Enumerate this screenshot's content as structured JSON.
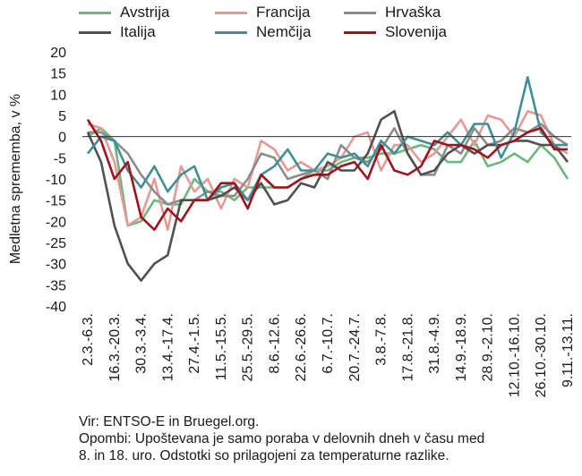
{
  "chart_data": {
    "type": "line",
    "title": "",
    "xlabel": "",
    "ylabel": "Medletna sprememba, v %",
    "ylim": [
      -40,
      20
    ],
    "yticks": [
      20,
      15,
      10,
      5,
      0,
      -5,
      -10,
      -15,
      -20,
      -25,
      -30,
      -35,
      -40
    ],
    "grid": false,
    "legend_position": "top",
    "x_tick_labels": [
      "2.3.-6.3.",
      "16.3.-20.3.",
      "30.3.-3.4.",
      "13.4.-17.4.",
      "27.4.-1.5.",
      "11.5.-15.5.",
      "25.5.-29.5.",
      "8.6.-12.6.",
      "22.6.-26.6.",
      "6.7.-10.7.",
      "20.7.-24.7.",
      "3.8.-7.8.",
      "17.8.-21.8.",
      "31.8.-4.9.",
      "14.9.-18.9.",
      "28.9.-2.10.",
      "12.10.-16.10.",
      "26.10.-30.10.",
      "9.11.-13.11."
    ],
    "n_points": 37,
    "series": [
      {
        "name": "Avstrija",
        "color": "#6db77c",
        "values": [
          0,
          2,
          -1,
          -21,
          -20,
          -15,
          -16,
          -16,
          -10,
          -13,
          -13,
          -15,
          -12,
          -12,
          -12,
          -12,
          -10,
          -8,
          -8,
          -6,
          -5,
          -5,
          -4,
          -4,
          -3,
          -2,
          -3,
          -6,
          -6,
          -1,
          -7,
          -6,
          -4,
          -6,
          -2,
          -5,
          -10
        ]
      },
      {
        "name": "Francija",
        "color": "#e49a96",
        "values": [
          3,
          2,
          -6,
          -21,
          -19,
          -10,
          -22,
          -7,
          -13,
          -10,
          -17,
          -10,
          -12,
          -1,
          -3,
          -8,
          -6,
          -8,
          -7,
          -5,
          0,
          1,
          -8,
          -2,
          -2,
          -6,
          -4,
          0,
          4,
          -2,
          5,
          4,
          0,
          6,
          5,
          -2,
          -4
        ]
      },
      {
        "name": "Hrvaška",
        "color": "#8c8c8c",
        "values": [
          1,
          1,
          -1,
          -4,
          -9,
          -13,
          -16,
          -15,
          -15,
          -13,
          -14,
          -14,
          -10,
          -4,
          -5,
          -10,
          -9,
          -8,
          -10,
          -2,
          -5,
          -6,
          -3,
          2,
          -4,
          -9,
          -9,
          -2,
          -4,
          2,
          -2,
          -1,
          2,
          1,
          3,
          0,
          -2
        ]
      },
      {
        "name": "Italija",
        "color": "#505050",
        "values": [
          1,
          -6,
          -21,
          -30,
          -34,
          -30,
          -28,
          -15,
          -15,
          -15,
          -14,
          -12,
          -15,
          -11,
          -16,
          -15,
          -11,
          -12,
          -6,
          -8,
          -8,
          -4,
          4,
          6,
          -4,
          -9,
          -8,
          -4,
          -2,
          -4,
          -2,
          -2,
          -1,
          -1,
          -2,
          -2,
          -6
        ]
      },
      {
        "name": "Nemčija",
        "color": "#3f8f95",
        "values": [
          -4,
          0,
          -1,
          -8,
          -12,
          -7,
          -13,
          -9,
          -7,
          -15,
          -12,
          -11,
          -15,
          -9,
          -7,
          -3,
          -8,
          -8,
          -4,
          -5,
          -4,
          -7,
          -1,
          -4,
          0,
          -1,
          -2,
          1,
          -2,
          3,
          3,
          -5,
          1,
          14,
          1,
          -2,
          -2
        ]
      },
      {
        "name": "Slovenija",
        "color": "#a1111e",
        "values": [
          4,
          -1,
          -10,
          -6,
          -19,
          -22,
          -17,
          -20,
          -15,
          -15,
          -11,
          -11,
          -17,
          -9,
          -12,
          -12,
          -10,
          -9,
          -9,
          -7,
          -6,
          -10,
          -2,
          -8,
          -9,
          -7,
          -1,
          -2,
          -2,
          -3,
          -5,
          -2,
          -1,
          1,
          2,
          -3,
          -3
        ]
      }
    ]
  },
  "legend": {
    "items": [
      "Avstrija",
      "Francija",
      "Hrvaška",
      "Italija",
      "Nemčija",
      "Slovenija"
    ]
  },
  "notes": {
    "source": "Vir: ENTSO-E in Bruegel.org.",
    "remark_line1": "Opombi: Upoštevana je samo poraba v delovnih dneh v času med",
    "remark_line2": "8. in 18. uro. Odstotki so prilagojeni za temperaturne razlike."
  }
}
